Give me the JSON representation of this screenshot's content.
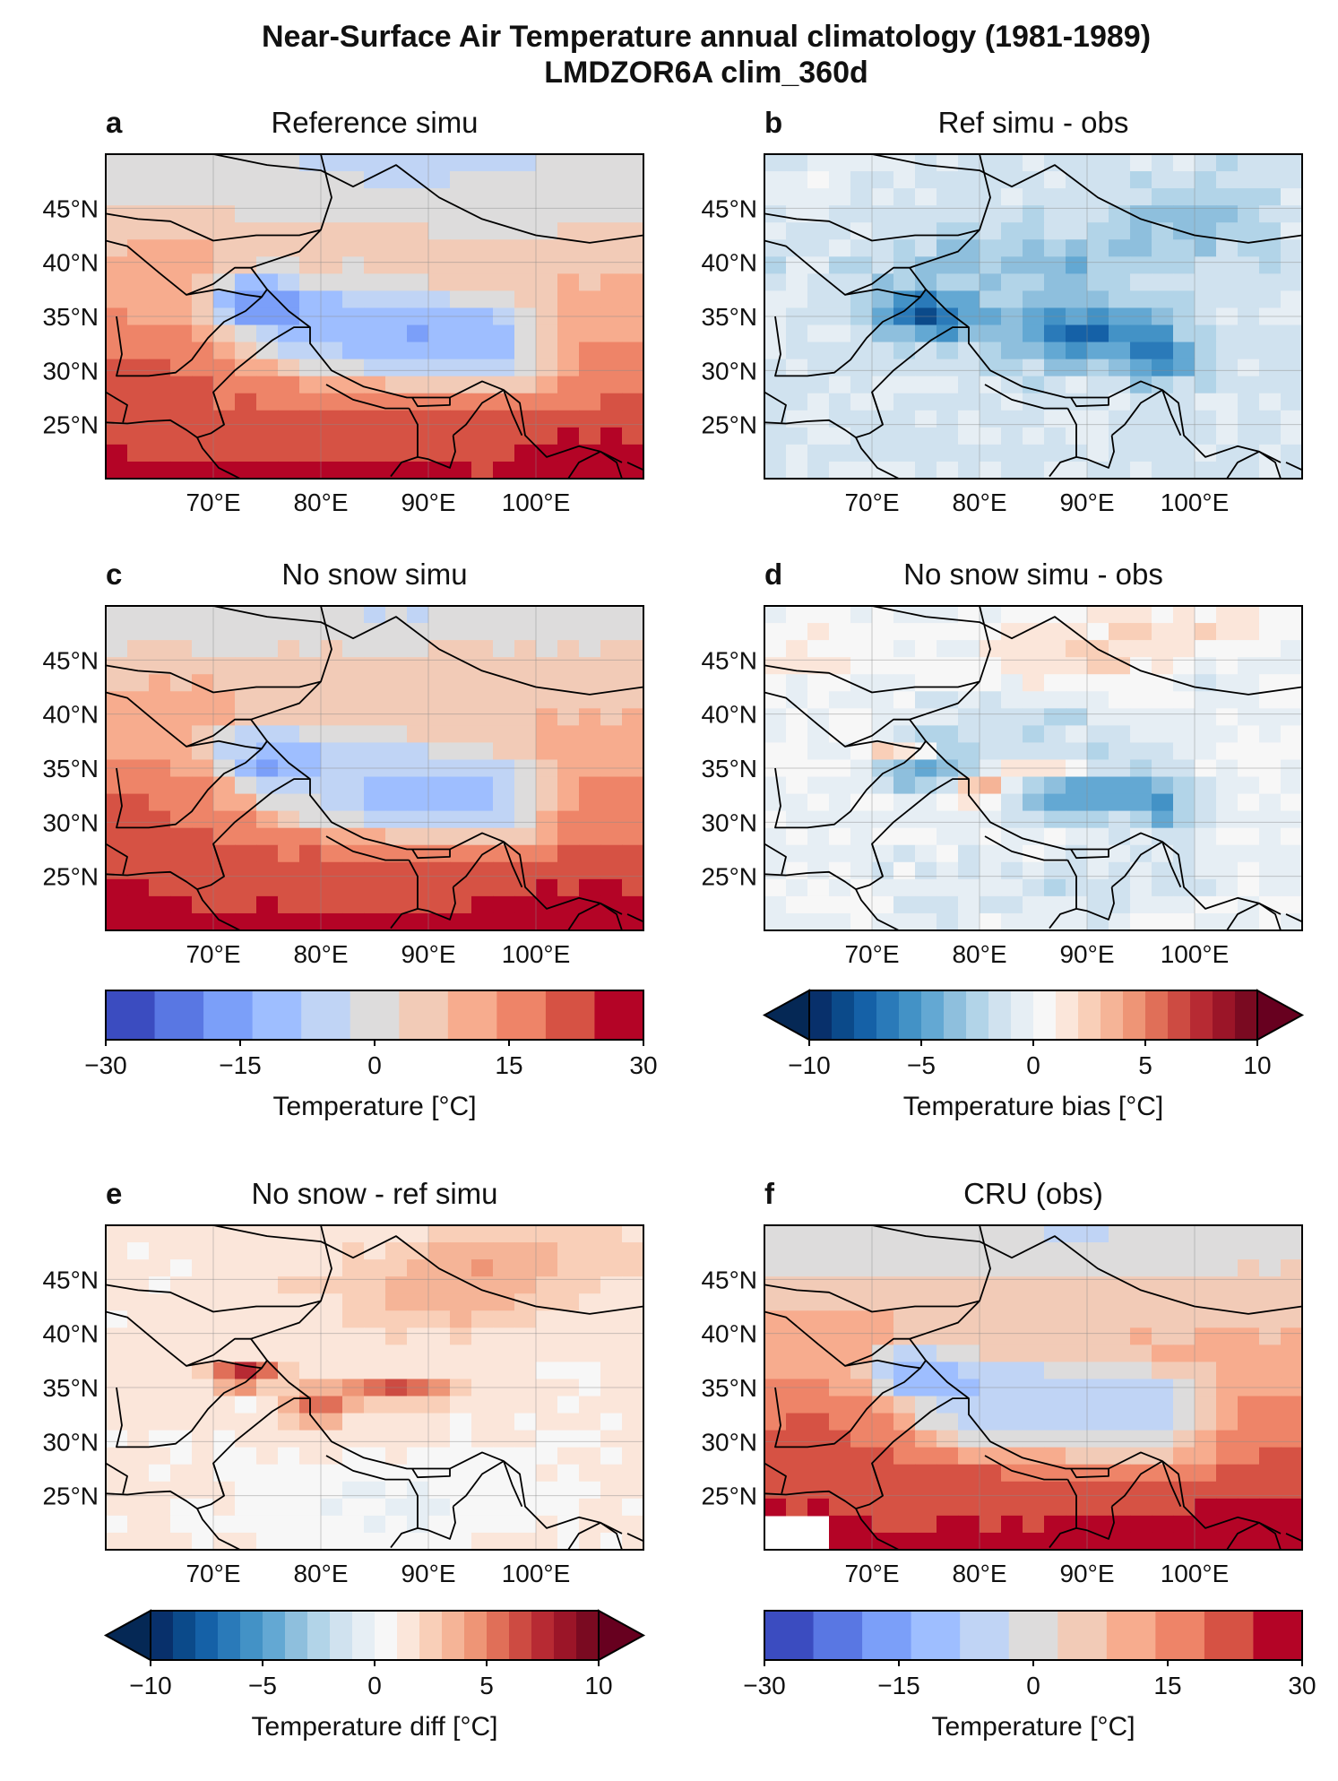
{
  "figure": {
    "suptitle_line1": "Near-Surface Air Temperature annual climatology (1981-1989)",
    "suptitle_line2": "LMDZOR6A clim_360d"
  },
  "chart_data": [
    {
      "type": "heatmap",
      "letter": "a",
      "title": "Reference simu",
      "field": "ref",
      "colormap": "temperature",
      "xticks": [
        "70°E",
        "80°E",
        "90°E",
        "100°E"
      ],
      "yticks": [
        "45°N",
        "40°N",
        "35°N",
        "30°N",
        "25°N"
      ]
    },
    {
      "type": "heatmap",
      "letter": "b",
      "title": "Ref simu - obs",
      "field": "bias_ref",
      "colormap": "bias",
      "xticks": [
        "70°E",
        "80°E",
        "90°E",
        "100°E"
      ],
      "yticks": [
        "45°N",
        "40°N",
        "35°N",
        "30°N",
        "25°N"
      ]
    },
    {
      "type": "heatmap",
      "letter": "c",
      "title": "No snow simu",
      "field": "nosnow",
      "colormap": "temperature",
      "xticks": [
        "70°E",
        "80°E",
        "90°E",
        "100°E"
      ],
      "yticks": [
        "45°N",
        "40°N",
        "35°N",
        "30°N",
        "25°N"
      ]
    },
    {
      "type": "heatmap",
      "letter": "d",
      "title": "No snow simu - obs",
      "field": "bias_nosnow",
      "colormap": "bias",
      "xticks": [
        "70°E",
        "80°E",
        "90°E",
        "100°E"
      ],
      "yticks": [
        "45°N",
        "40°N",
        "35°N",
        "30°N",
        "25°N"
      ]
    },
    {
      "type": "heatmap",
      "letter": "e",
      "title": "No snow - ref simu",
      "field": "diff",
      "colormap": "bias",
      "xticks": [
        "70°E",
        "80°E",
        "90°E",
        "100°E"
      ],
      "yticks": [
        "45°N",
        "40°N",
        "35°N",
        "30°N",
        "25°N"
      ]
    },
    {
      "type": "heatmap",
      "letter": "f",
      "title": "CRU (obs)",
      "field": "obs",
      "colormap": "temperature",
      "xticks": [
        "70°E",
        "80°E",
        "90°E",
        "100°E"
      ],
      "yticks": [
        "45°N",
        "40°N",
        "35°N",
        "30°N",
        "25°N"
      ]
    }
  ],
  "colorbars": [
    {
      "label": "Temperature [°C]",
      "range": [
        -30,
        30
      ],
      "tick_labels": [
        "−30",
        "−15",
        "0",
        "15",
        "30"
      ],
      "extend": "neither",
      "colors": [
        "#3b4cc0",
        "#5977e3",
        "#7b9ff9",
        "#9ebeff",
        "#c0d4f5",
        "#dddcdc",
        "#f2cbb7",
        "#f7ac8e",
        "#ee8468",
        "#d65244",
        "#b40426"
      ]
    },
    {
      "label": "Temperature bias [°C]",
      "range": [
        -10,
        10
      ],
      "tick_labels": [
        "−10",
        "−5",
        "0",
        "5",
        "10"
      ],
      "extend": "both",
      "colors": [
        "#08306b",
        "#0b4a8a",
        "#1561a7",
        "#2a7ab9",
        "#4392c6",
        "#63a8d3",
        "#8ebfdd",
        "#b2d4e8",
        "#d0e2ef",
        "#e6eef4",
        "#f7f7f7",
        "#fbe6da",
        "#f9cfb8",
        "#f5b497",
        "#ee9576",
        "#e06f58",
        "#cd4b42",
        "#b72a33",
        "#9b1528",
        "#7a0a21"
      ],
      "under": "#052855",
      "over": "#67001f"
    },
    {
      "label": "Temperature diff [°C]",
      "range": [
        -10,
        10
      ],
      "tick_labels": [
        "−10",
        "−5",
        "0",
        "5",
        "10"
      ],
      "extend": "both",
      "colors": [
        "#08306b",
        "#0b4a8a",
        "#1561a7",
        "#2a7ab9",
        "#4392c6",
        "#63a8d3",
        "#8ebfdd",
        "#b2d4e8",
        "#d0e2ef",
        "#e6eef4",
        "#f7f7f7",
        "#fbe6da",
        "#f9cfb8",
        "#f5b497",
        "#ee9576",
        "#e06f58",
        "#cd4b42",
        "#b72a33",
        "#9b1528",
        "#7a0a21"
      ],
      "under": "#052855",
      "over": "#67001f"
    },
    {
      "label": "Temperature [°C]",
      "range": [
        -30,
        30
      ],
      "tick_labels": [
        "−30",
        "−15",
        "0",
        "15",
        "30"
      ],
      "extend": "neither",
      "colors": [
        "#3b4cc0",
        "#5977e3",
        "#7b9ff9",
        "#9ebeff",
        "#c0d4f5",
        "#dddcdc",
        "#f2cbb7",
        "#f7ac8e",
        "#ee8468",
        "#d65244",
        "#b40426"
      ]
    }
  ]
}
